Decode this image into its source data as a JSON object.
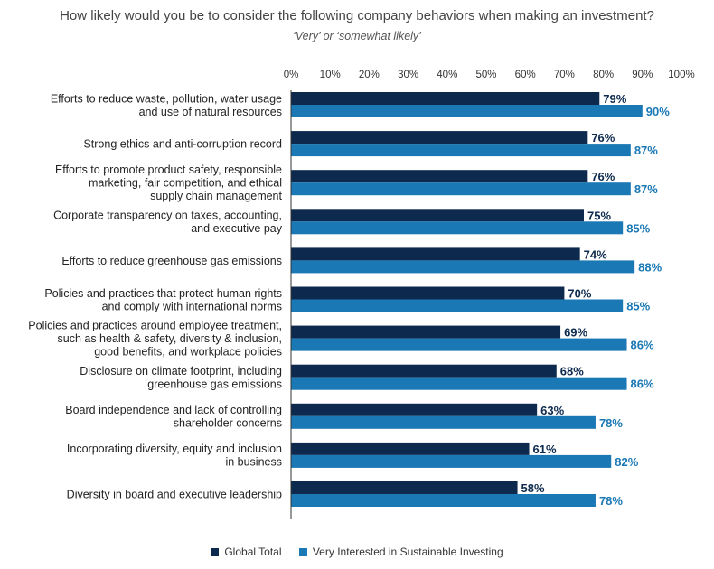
{
  "chart_data": {
    "type": "bar",
    "orientation": "horizontal",
    "title": "How likely would you be to consider the following company behaviors when making an investment?",
    "subtitle": "‘Very’ or ‘somewhat likely’",
    "xlim": [
      0,
      100
    ],
    "x_ticks": [
      "0%",
      "10%",
      "20%",
      "30%",
      "40%",
      "50%",
      "60%",
      "70%",
      "80%",
      "90%",
      "100%"
    ],
    "grid": false,
    "legend_position": "bottom",
    "categories": [
      [
        "Efforts to reduce waste, pollution, water usage",
        "and use of natural resources"
      ],
      [
        "Strong ethics and anti-corruption record"
      ],
      [
        "Efforts to promote product safety, responsible",
        "marketing, fair competition, and ethical",
        "supply chain management"
      ],
      [
        "Corporate transparency on taxes, accounting,",
        "and executive pay"
      ],
      [
        "Efforts to reduce greenhouse gas emissions"
      ],
      [
        "Policies and practices that protect human rights",
        "and comply with international norms"
      ],
      [
        "Policies and practices around employee treatment,",
        "such as health & safety, diversity & inclusion,",
        "good benefits, and workplace policies"
      ],
      [
        "Disclosure on climate footprint, including",
        "greenhouse gas emissions"
      ],
      [
        "Board independence and lack of controlling",
        "shareholder concerns"
      ],
      [
        "Incorporating diversity, equity and inclusion",
        "in business"
      ],
      [
        "Diversity in board and executive leadership"
      ]
    ],
    "series": [
      {
        "name": "Global Total",
        "color": "#0d2a4e",
        "values": [
          79,
          76,
          76,
          75,
          74,
          70,
          69,
          68,
          63,
          61,
          58
        ],
        "labels": [
          "79%",
          "76%",
          "76%",
          "75%",
          "74%",
          "70%",
          "69%",
          "68%",
          "63%",
          "61%",
          "58%"
        ]
      },
      {
        "name": "Very Interested in Sustainable Investing",
        "color": "#1a78b5",
        "values": [
          90,
          87,
          87,
          85,
          88,
          85,
          86,
          86,
          78,
          82,
          78
        ],
        "labels": [
          "90%",
          "87%",
          "87%",
          "85%",
          "88%",
          "85%",
          "86%",
          "86%",
          "78%",
          "82%",
          "78%"
        ]
      }
    ]
  }
}
